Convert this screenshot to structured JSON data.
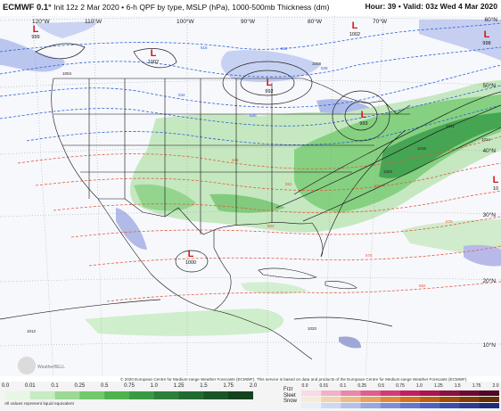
{
  "header": {
    "model": "ECMWF 0.1°",
    "description": "Init 12z 2 Mar 2020 • 6-h QPF by type, MSLP (hPa), 1000-500mb Thickness (dm)",
    "valid": "Hour: 39 • Valid: 03z Wed 4 Mar 2020"
  },
  "map": {
    "lon_labels": [
      "120°W",
      "110°W",
      "100°W",
      "90°W",
      "80°W",
      "70°W"
    ],
    "lat_labels": [
      "60°N",
      "50°N",
      "40°N",
      "30°N",
      "20°N",
      "10°N"
    ],
    "pressure_centers": [
      {
        "letter": "L",
        "value": "999"
      },
      {
        "letter": "L",
        "value": "1002"
      },
      {
        "letter": "L",
        "value": "992"
      },
      {
        "letter": "L",
        "value": "1002"
      },
      {
        "letter": "L",
        "value": "998"
      },
      {
        "letter": "L",
        "value": "993"
      },
      {
        "letter": "L",
        "value": "1000"
      },
      {
        "letter": "L",
        "value": "10"
      }
    ],
    "thickness_labels": [
      "516",
      "522",
      "528",
      "534",
      "540",
      "546",
      "552",
      "558",
      "564",
      "570",
      "576",
      "582"
    ],
    "isobar_labels": [
      "1008",
      "1016",
      "1012",
      "1024",
      "1020",
      "1004",
      "1012",
      "1020"
    ],
    "logo_text": "WeatherBELL",
    "colors": {
      "rain_light": "#b5e3b0",
      "rain_mid": "#66c36b",
      "rain_heavy": "#1f8a3b",
      "snow": "#9fb3e6",
      "snow_heavy": "#5c71c8",
      "isobar": "#222222",
      "thickness_cold": "#2b5fd9",
      "thickness_warm": "#e05a3a",
      "borders": "#111111"
    }
  },
  "credit": "© 2020 European Centre for Medium-range Weather Forecasts (ECMWF). This service is based on data and products of the European Centre for Medium-range Weather Forecasts (ECMWF).",
  "legend": {
    "qpf_ticks": [
      "0.0",
      "0.01",
      "0.1",
      "0.25",
      "0.5",
      "0.75",
      "1.0",
      "1.25",
      "1.5",
      "1.75",
      "2.0"
    ],
    "qpf_colors": [
      "#e8f6e6",
      "#c7ebc2",
      "#9bd994",
      "#72c86d",
      "#4fb24f",
      "#3a9a44",
      "#2d7f3a",
      "#236a31",
      "#1a5527",
      "#12421e"
    ],
    "note": "All values represent liquid equivalent",
    "type_labels": [
      "Frzr",
      "Sleet",
      "Snow"
    ],
    "type_ticks": [
      "0.0",
      "0.01",
      "0.1",
      "0.25",
      "0.5",
      "0.75",
      "1.0",
      "1.25",
      "1.5",
      "1.75",
      "2.0"
    ],
    "frzr_colors": [
      "#f7dbe6",
      "#f0b2c9",
      "#e887aa",
      "#de5f8f",
      "#d33b76",
      "#c21f62",
      "#a8154f",
      "#8b0f3f",
      "#6e0a31",
      "#520624"
    ],
    "sleet_colors": [
      "#f8e9d8",
      "#f3d2ae",
      "#edba85",
      "#e8a15e",
      "#e1893a",
      "#d5721d",
      "#bc5e13",
      "#9f4c0e",
      "#823c0a",
      "#662e07"
    ],
    "snow_colors": [
      "#e9edf9",
      "#cfd8f2",
      "#b2c0ea",
      "#96a7e1",
      "#7b8fd8",
      "#6277ce",
      "#4c61c1",
      "#3a4dae",
      "#2c3b94",
      "#1f2c79"
    ]
  }
}
